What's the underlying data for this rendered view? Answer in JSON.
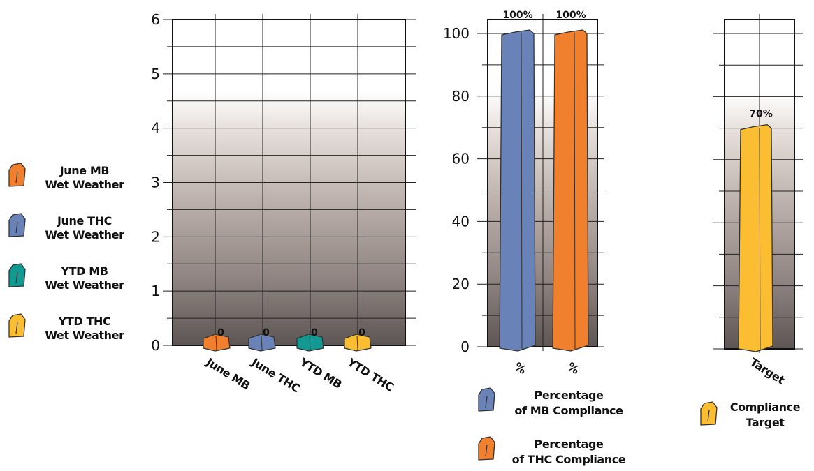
{
  "chart_data": [
    {
      "type": "bar",
      "categories": [
        "June MB",
        "June THC",
        "YTD MB",
        "YTD THC"
      ],
      "values": [
        0,
        0,
        0,
        0
      ],
      "data_labels": [
        "0",
        "0",
        "0",
        "0"
      ],
      "colors": [
        "#f07f2e",
        "#6982b8",
        "#129a92",
        "#fbbd32"
      ],
      "ylim": [
        0,
        6
      ],
      "yticks": [
        "0",
        "1",
        "2",
        "3",
        "4",
        "5",
        "6"
      ],
      "grid": true,
      "legend": {
        "placement": "left",
        "entries": [
          {
            "line1": "June MB",
            "line2": "Wet Weather",
            "color": "#f07f2e"
          },
          {
            "line1": "June THC",
            "line2": "Wet Weather",
            "color": "#6982b8"
          },
          {
            "line1": "YTD MB",
            "line2": "Wet Weather",
            "color": "#129a92"
          },
          {
            "line1": "YTD THC",
            "line2": "Wet Weather",
            "color": "#fbbd32"
          }
        ]
      }
    },
    {
      "type": "bar",
      "categories": [
        "%",
        "%"
      ],
      "values": [
        100,
        100
      ],
      "data_labels": [
        "100%",
        "100%"
      ],
      "colors": [
        "#6982b8",
        "#f07f2e"
      ],
      "ylim": [
        0,
        100
      ],
      "yticks": [
        "0",
        "20",
        "40",
        "60",
        "80",
        "100"
      ],
      "grid": true,
      "legend": {
        "placement": "bottom",
        "entries": [
          {
            "line1": "Percentage",
            "line2": "of MB Compliance",
            "color": "#6982b8"
          },
          {
            "line1": "Percentage",
            "line2": "of THC Compliance",
            "color": "#f07f2e"
          }
        ]
      }
    },
    {
      "type": "bar",
      "categories": [
        "Target"
      ],
      "values": [
        70
      ],
      "data_labels": [
        "70%"
      ],
      "colors": [
        "#fbbd32"
      ],
      "ylim": [
        0,
        100
      ],
      "grid": true,
      "legend": {
        "placement": "bottom",
        "entries": [
          {
            "line1": "Compliance",
            "line2": "Target",
            "color": "#fbbd32"
          }
        ]
      }
    }
  ]
}
